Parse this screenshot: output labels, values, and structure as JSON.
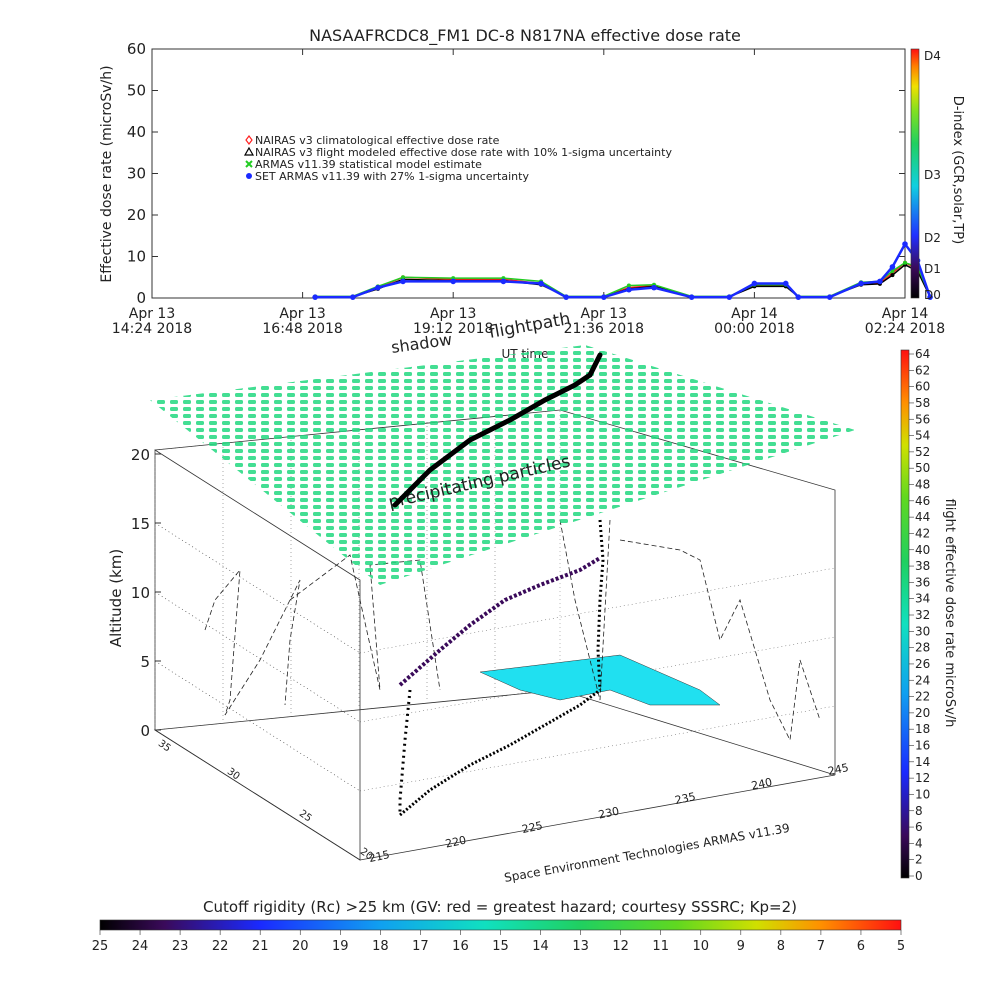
{
  "title": "NASAAFRCDC8_FM1 DC-8    N817NA effective dose rate",
  "top_chart": {
    "ylabel": "Effective dose rate (microSv/h)",
    "xlabel": "UT time",
    "yticks": [
      "0",
      "10",
      "20",
      "30",
      "40",
      "50",
      "60"
    ],
    "xticks": [
      {
        "line1": "Apr 13",
        "line2": "14:24 2018"
      },
      {
        "line1": "Apr 13",
        "line2": "16:48 2018"
      },
      {
        "line1": "Apr 13",
        "line2": "19:12 2018"
      },
      {
        "line1": "Apr 13",
        "line2": "21:36 2018"
      },
      {
        "line1": "Apr 14",
        "line2": "00:00 2018"
      },
      {
        "line1": "Apr 14",
        "line2": "02:24 2018"
      }
    ],
    "legend": [
      {
        "label": "NAIRAS v3 climatological effective dose rate",
        "color": "#ff2020",
        "marker": "diamond"
      },
      {
        "label": "NAIRAS v3 flight modeled effective dose rate with 10% 1-sigma uncertainty",
        "color": "#000000",
        "marker": "triangle"
      },
      {
        "label": "ARMAS v11.39 statistical model estimate",
        "color": "#22cc22",
        "marker": "x"
      },
      {
        "label": "SET ARMAS v11.39 with 27% 1-sigma uncertainty",
        "color": "#1a2aff",
        "marker": "circle"
      }
    ],
    "dindex": {
      "title": "D-index (GCR,solar,TP)",
      "labels": [
        "D0",
        "D1",
        "D2",
        "D3",
        "D4"
      ]
    }
  },
  "chart_data": [
    {
      "type": "scatter",
      "title": "NASAAFRCDC8_FM1 DC-8    N817NA effective dose rate",
      "xlabel": "UT time",
      "ylabel": "Effective dose rate (microSv/h)",
      "ylim": [
        0,
        60
      ],
      "xlim": [
        "2018-04-13 14:24",
        "2018-04-14 02:24"
      ],
      "x_hours": [
        2.6,
        3.2,
        3.6,
        4.0,
        4.8,
        5.6,
        6.2,
        6.6,
        7.2,
        7.6,
        8.0,
        8.6,
        9.2,
        9.6,
        10.1,
        10.3,
        10.8,
        11.3,
        11.6,
        11.8,
        12.0,
        12.2,
        12.4
      ],
      "series": [
        {
          "name": "NAIRAS v3 climatological effective dose rate",
          "values": [
            0.3,
            0.3,
            2.5,
            5,
            4.5,
            4.5,
            3.5,
            0.3,
            0.3,
            2.5,
            3,
            0.3,
            0.3,
            3,
            3,
            0.3,
            0.3,
            3.5,
            3.6,
            6,
            8.5,
            7,
            0.3
          ]
        },
        {
          "name": "NAIRAS v3 flight modeled effective dose rate with 10% 1-sigma uncertainty",
          "values": [
            0.3,
            0.3,
            2.2,
            4.5,
            4.2,
            4.2,
            3.2,
            0.3,
            0.3,
            2.2,
            2.8,
            0.3,
            0.3,
            2.8,
            2.8,
            0.3,
            0.3,
            3.2,
            3.4,
            5.5,
            8,
            6.5,
            0.3
          ]
        },
        {
          "name": "ARMAS v11.39 statistical model estimate",
          "values": [
            0.4,
            0.4,
            2.8,
            5,
            4.8,
            4.8,
            4,
            0.4,
            0.4,
            3,
            3.2,
            0.4,
            0.4,
            3.2,
            3.2,
            0.4,
            0.4,
            3.8,
            4,
            6.5,
            8.5,
            7.5,
            0.4
          ]
        },
        {
          "name": "SET ARMAS v11.39 with 27% 1-sigma uncertainty",
          "values": [
            0.2,
            0.2,
            2.5,
            4,
            4,
            4,
            3.5,
            0.2,
            0.2,
            2,
            2.5,
            0.2,
            0.2,
            3.5,
            3.5,
            0.2,
            0.2,
            3.5,
            4,
            7.5,
            13,
            9,
            0.2
          ]
        }
      ]
    },
    {
      "type": "scatter",
      "title": "",
      "xlabel": "",
      "ylabel": "Altitude (km)",
      "zlim": [
        0,
        20
      ],
      "zticks": [
        "0",
        "5",
        "10",
        "15",
        "20"
      ],
      "lon_ticks": [
        "215",
        "220",
        "225",
        "230",
        "235",
        "240",
        "245"
      ],
      "lat_ticks": [
        "20",
        "25",
        "30",
        "35"
      ],
      "series": [
        {
          "name": "flight effective dose rate microSv/h",
          "lon": [
            216.5,
            219,
            222,
            225,
            228,
            231,
            234,
            237,
            239
          ],
          "lat": [
            20.5,
            22,
            24,
            26,
            28,
            30,
            31.5,
            33,
            34
          ],
          "alt": [
            0.2,
            2,
            5,
            9,
            11,
            12,
            12,
            11.5,
            0
          ]
        }
      ]
    }
  ],
  "annotations": {
    "flightpath": "flightpath",
    "shadow": "shadow",
    "precip": "precipitating particles",
    "credit": "Space Environment Technologies ARMAS v11.39"
  },
  "right_colorbar": {
    "title": "flight effective dose rate microSv/h",
    "ticks": [
      "0",
      "2",
      "4",
      "6",
      "8",
      "10",
      "12",
      "14",
      "16",
      "18",
      "20",
      "22",
      "24",
      "26",
      "28",
      "30",
      "32",
      "34",
      "36",
      "38",
      "40",
      "42",
      "44",
      "46",
      "48",
      "50",
      "52",
      "54",
      "56",
      "58",
      "60",
      "62",
      "64"
    ]
  },
  "bottom_colorbar": {
    "title": "Cutoff rigidity (Rc) >25 km (GV: red = greatest hazard; courtesy SSSRC; Kp=2)",
    "ticks": [
      "25",
      "24",
      "23",
      "22",
      "21",
      "20",
      "19",
      "18",
      "17",
      "16",
      "15",
      "14",
      "13",
      "12",
      "11",
      "10",
      "9",
      "8",
      "7",
      "6",
      "5"
    ]
  }
}
